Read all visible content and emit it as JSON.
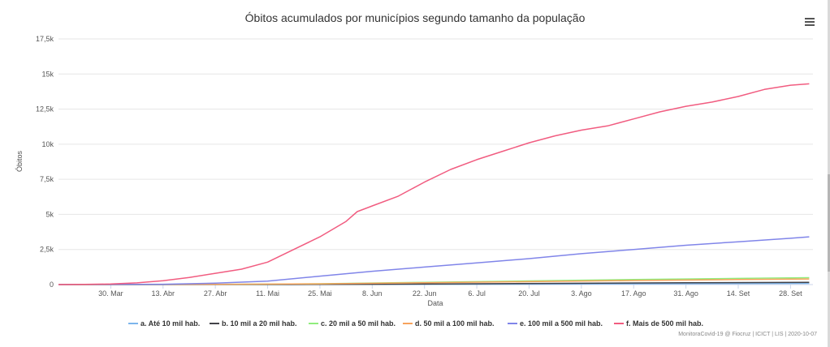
{
  "chart_data": {
    "type": "line",
    "title": "Óbitos acumulados por municípios segundo tamanho da população",
    "xlabel": "Data",
    "ylabel": "Óbitos",
    "x_start": "2020-03-16",
    "x_end": "2020-10-04",
    "x_ticks": [
      {
        "date": "2020-03-30",
        "label": "30. Mar"
      },
      {
        "date": "2020-04-13",
        "label": "13. Abr"
      },
      {
        "date": "2020-04-27",
        "label": "27. Abr"
      },
      {
        "date": "2020-05-11",
        "label": "11. Mai"
      },
      {
        "date": "2020-05-25",
        "label": "25. Mai"
      },
      {
        "date": "2020-06-08",
        "label": "8. Jun"
      },
      {
        "date": "2020-06-22",
        "label": "22. Jun"
      },
      {
        "date": "2020-07-06",
        "label": "6. Jul"
      },
      {
        "date": "2020-07-20",
        "label": "20. Jul"
      },
      {
        "date": "2020-08-03",
        "label": "3. Ago"
      },
      {
        "date": "2020-08-17",
        "label": "17. Ago"
      },
      {
        "date": "2020-08-31",
        "label": "31. Ago"
      },
      {
        "date": "2020-09-14",
        "label": "14. Set"
      },
      {
        "date": "2020-09-28",
        "label": "28. Set"
      }
    ],
    "ylim": [
      0,
      17500
    ],
    "y_ticks": [
      {
        "value": 0,
        "label": "0"
      },
      {
        "value": 2500,
        "label": "2,5k"
      },
      {
        "value": 5000,
        "label": "5k"
      },
      {
        "value": 7500,
        "label": "7,5k"
      },
      {
        "value": 10000,
        "label": "10k"
      },
      {
        "value": 12500,
        "label": "12,5k"
      },
      {
        "value": 15000,
        "label": "15k"
      },
      {
        "value": 17500,
        "label": "17,5k"
      }
    ],
    "grid": true,
    "legend_position": "bottom",
    "series": [
      {
        "name": "a. Até 10 mil hab.",
        "color": "#7cb5ec",
        "points": [
          [
            "2020-03-16",
            0
          ],
          [
            "2020-05-11",
            2
          ],
          [
            "2020-06-08",
            10
          ],
          [
            "2020-07-06",
            25
          ],
          [
            "2020-08-03",
            45
          ],
          [
            "2020-08-31",
            65
          ],
          [
            "2020-10-03",
            85
          ]
        ]
      },
      {
        "name": "b. 10 mil a 20 mil hab.",
        "color": "#434348",
        "points": [
          [
            "2020-03-16",
            0
          ],
          [
            "2020-05-11",
            5
          ],
          [
            "2020-06-08",
            25
          ],
          [
            "2020-07-06",
            55
          ],
          [
            "2020-08-03",
            90
          ],
          [
            "2020-08-31",
            125
          ],
          [
            "2020-10-03",
            160
          ]
        ]
      },
      {
        "name": "c. 20 mil a 50 mil hab.",
        "color": "#90ed7d",
        "points": [
          [
            "2020-03-16",
            0
          ],
          [
            "2020-04-27",
            10
          ],
          [
            "2020-05-25",
            60
          ],
          [
            "2020-06-22",
            160
          ],
          [
            "2020-07-20",
            260
          ],
          [
            "2020-08-17",
            360
          ],
          [
            "2020-09-14",
            440
          ],
          [
            "2020-10-03",
            490
          ]
        ]
      },
      {
        "name": "d. 50 mil a 100 mil hab.",
        "color": "#f7a35c",
        "points": [
          [
            "2020-03-16",
            0
          ],
          [
            "2020-04-27",
            10
          ],
          [
            "2020-05-25",
            50
          ],
          [
            "2020-06-22",
            130
          ],
          [
            "2020-07-20",
            210
          ],
          [
            "2020-08-17",
            290
          ],
          [
            "2020-09-14",
            360
          ],
          [
            "2020-10-03",
            400
          ]
        ]
      },
      {
        "name": "e. 100 mil a 500 mil hab.",
        "color": "#8085e9",
        "points": [
          [
            "2020-03-16",
            0
          ],
          [
            "2020-03-30",
            5
          ],
          [
            "2020-04-13",
            25
          ],
          [
            "2020-04-27",
            100
          ],
          [
            "2020-05-11",
            250
          ],
          [
            "2020-05-25",
            600
          ],
          [
            "2020-06-08",
            950
          ],
          [
            "2020-06-22",
            1250
          ],
          [
            "2020-07-06",
            1550
          ],
          [
            "2020-07-20",
            1850
          ],
          [
            "2020-08-03",
            2200
          ],
          [
            "2020-08-17",
            2500
          ],
          [
            "2020-08-31",
            2800
          ],
          [
            "2020-09-14",
            3050
          ],
          [
            "2020-09-28",
            3300
          ],
          [
            "2020-10-03",
            3400
          ]
        ]
      },
      {
        "name": "f. Mais de 500 mil hab.",
        "color": "#f15c80",
        "points": [
          [
            "2020-03-16",
            0
          ],
          [
            "2020-03-23",
            10
          ],
          [
            "2020-03-30",
            40
          ],
          [
            "2020-04-06",
            120
          ],
          [
            "2020-04-13",
            280
          ],
          [
            "2020-04-20",
            500
          ],
          [
            "2020-04-27",
            800
          ],
          [
            "2020-05-04",
            1100
          ],
          [
            "2020-05-11",
            1600
          ],
          [
            "2020-05-18",
            2500
          ],
          [
            "2020-05-25",
            3400
          ],
          [
            "2020-06-01",
            4500
          ],
          [
            "2020-06-04",
            5200
          ],
          [
            "2020-06-08",
            5600
          ],
          [
            "2020-06-15",
            6300
          ],
          [
            "2020-06-22",
            7300
          ],
          [
            "2020-06-29",
            8200
          ],
          [
            "2020-07-06",
            8900
          ],
          [
            "2020-07-13",
            9500
          ],
          [
            "2020-07-20",
            10100
          ],
          [
            "2020-07-27",
            10600
          ],
          [
            "2020-08-03",
            11000
          ],
          [
            "2020-08-10",
            11300
          ],
          [
            "2020-08-17",
            11800
          ],
          [
            "2020-08-24",
            12300
          ],
          [
            "2020-08-31",
            12700
          ],
          [
            "2020-09-07",
            13000
          ],
          [
            "2020-09-14",
            13400
          ],
          [
            "2020-09-21",
            13900
          ],
          [
            "2020-09-28",
            14200
          ],
          [
            "2020-10-03",
            14300
          ]
        ]
      }
    ]
  },
  "credit": "MonitoraCovid-19 @ Fiocruz | ICICT | LIS | 2020-10-07",
  "menu_icon": "hamburger-menu-icon"
}
